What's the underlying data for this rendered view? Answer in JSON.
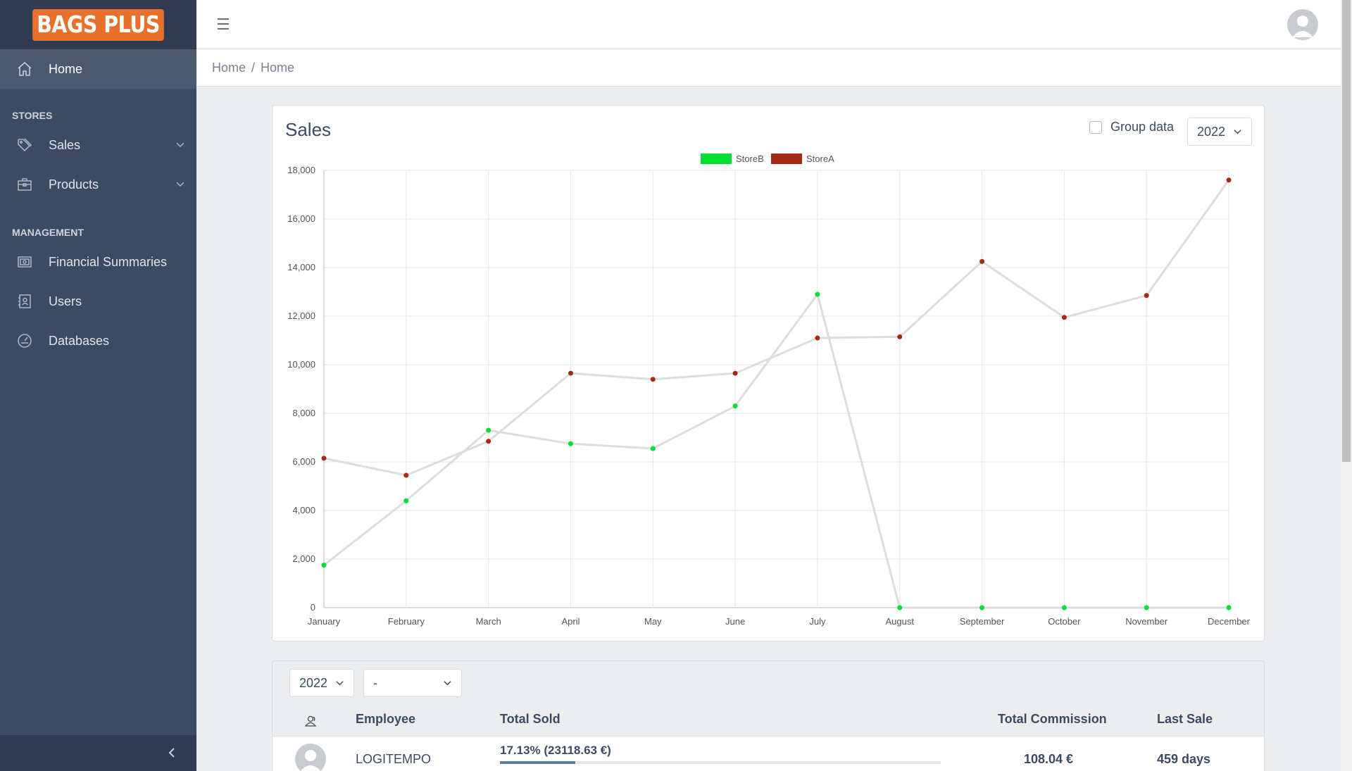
{
  "brand": {
    "logo_text": "BAGS PLUS"
  },
  "sidebar": {
    "home_label": "Home",
    "stores_title": "STORES",
    "sales_label": "Sales",
    "products_label": "Products",
    "management_title": "MANAGEMENT",
    "financial_label": "Financial Summaries",
    "users_label": "Users",
    "databases_label": "Databases"
  },
  "header": {
    "menu_glyph": "☰"
  },
  "breadcrumb": {
    "item1": "Home",
    "separator": "/",
    "item2": "Home"
  },
  "sales_card": {
    "title": "Sales",
    "group_data_label": "Group data",
    "year_selected": "2022"
  },
  "chart_data": {
    "type": "line",
    "categories": [
      "January",
      "February",
      "March",
      "April",
      "May",
      "June",
      "July",
      "August",
      "September",
      "October",
      "November",
      "December"
    ],
    "series": [
      {
        "name": "StoreB",
        "color": "#00dd33",
        "values": [
          1750,
          4400,
          7300,
          6750,
          6550,
          8300,
          12900,
          0,
          0,
          0,
          0,
          0
        ]
      },
      {
        "name": "StoreA",
        "color": "#a32b14",
        "values": [
          6150,
          5450,
          6850,
          9650,
          9400,
          9650,
          11100,
          11150,
          14250,
          11950,
          12850,
          17600
        ]
      }
    ],
    "line_color": "#dddddd",
    "ylim": [
      0,
      18000
    ],
    "yticks": [
      "0",
      "2,000",
      "4,000",
      "6,000",
      "8,000",
      "10,000",
      "12,000",
      "14,000",
      "16,000",
      "18,000"
    ],
    "grid": true,
    "legend": "top-center"
  },
  "table_card": {
    "year_filter": "2022",
    "month_filter": "-",
    "columns": {
      "employee": "Employee",
      "total_sold": "Total Sold",
      "total_commission": "Total Commission",
      "last_sale": "Last Sale"
    },
    "rows": [
      {
        "employee": "LOGITEMPO",
        "total_sold": "17.13% (23118.63 €)",
        "progress": 0.1713,
        "total_commission": "108.04 €",
        "last_sale": "459 days"
      }
    ]
  }
}
